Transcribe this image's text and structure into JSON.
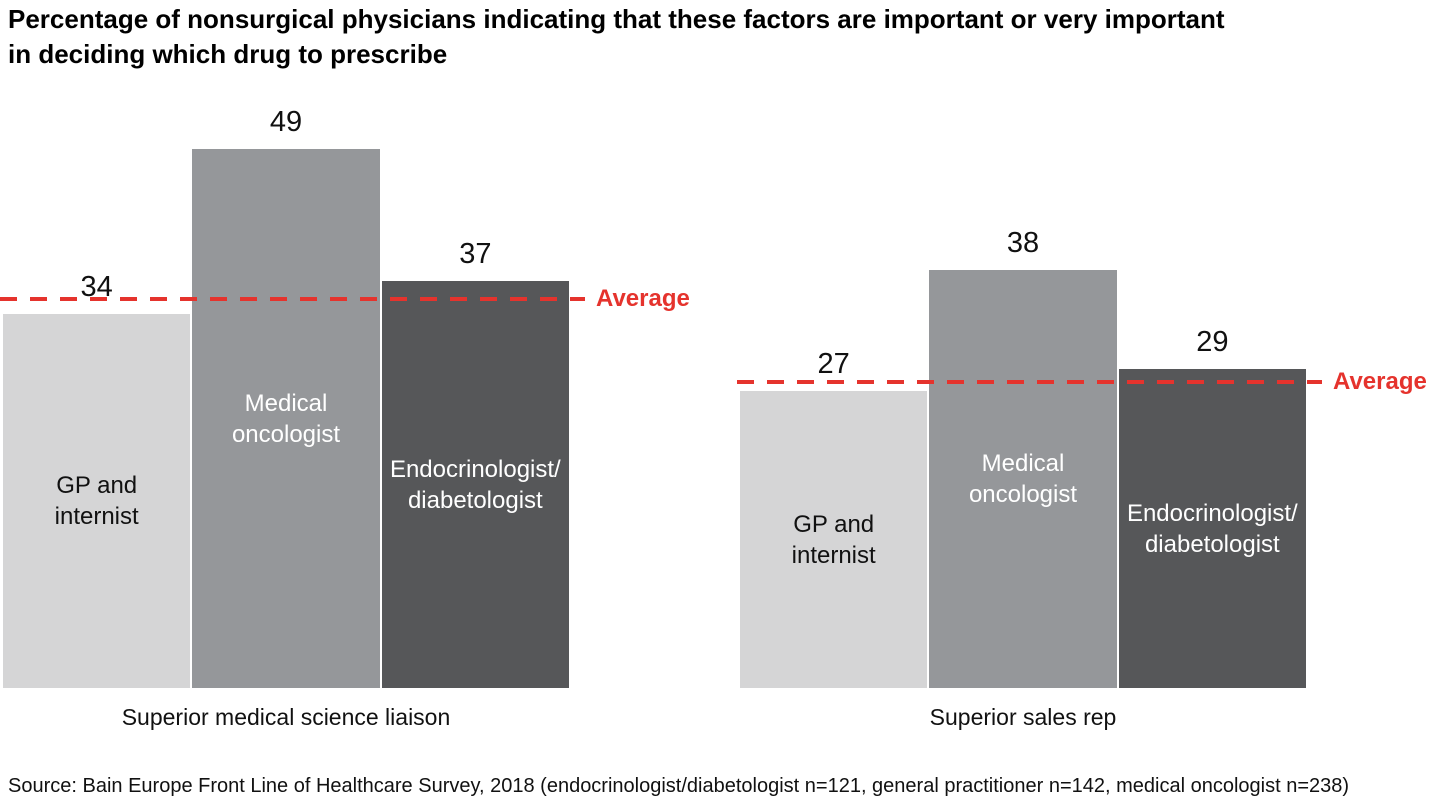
{
  "title": "Percentage of nonsurgical physicians indicating that these factors are important or very important\nin deciding which drug to prescribe",
  "source": "Source: Bain Europe Front Line of Healthcare Survey, 2018 (endocrinologist/diabetologist n=121, general practitioner n=142, medical oncologist n=238)",
  "colors": {
    "bar_fills": [
      "#d5d5d6",
      "#95979a",
      "#565759"
    ],
    "bar_label_colors": [
      "#111111",
      "#ffffff",
      "#ffffff"
    ],
    "average_red": "#e5332d",
    "text": "#111111",
    "background": "#ffffff"
  },
  "chart_data": [
    {
      "type": "bar",
      "group_label": "Superior medical science liaison",
      "categories": [
        "GP and\ninternist",
        "Medical\noncologist",
        "Endocrinologist/\ndiabetologist"
      ],
      "values": [
        34,
        49,
        37
      ],
      "value_labels": [
        "34",
        "49",
        "37"
      ],
      "average_line_value": 35.4,
      "average_line_label": "Average",
      "ylim": [
        0,
        53
      ],
      "grid": false,
      "legend": "none",
      "value_labels_shown": true
    },
    {
      "type": "bar",
      "group_label": "Superior sales rep",
      "categories": [
        "GP and\ninternist",
        "Medical\noncologist",
        "Endocrinologist/\ndiabetologist"
      ],
      "values": [
        27,
        38,
        29
      ],
      "value_labels": [
        "27",
        "38",
        "29"
      ],
      "average_line_value": 27.8,
      "average_line_label": "Average",
      "ylim": [
        0,
        53
      ],
      "grid": false,
      "legend": "none",
      "value_labels_shown": true
    }
  ]
}
